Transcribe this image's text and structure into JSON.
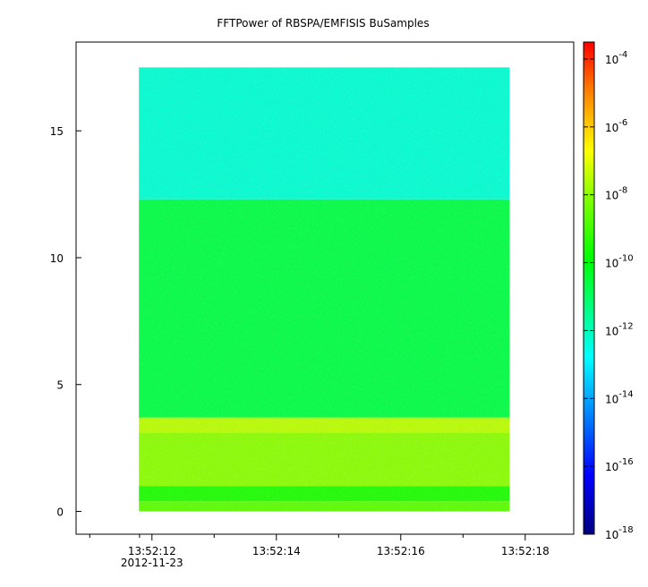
{
  "chart_data": {
    "type": "heatmap",
    "title": "FFTPower of RBSPA/EMFISIS  BuSamples",
    "xlabel": "",
    "ylabel": "",
    "x_ticks": [
      {
        "label": "13:52:12",
        "sub": "2012-11-23",
        "t": 12
      },
      {
        "label": "13:52:14",
        "sub": "",
        "t": 14
      },
      {
        "label": "13:52:16",
        "sub": "",
        "t": 16
      },
      {
        "label": "13:52:18",
        "sub": "",
        "t": 18
      }
    ],
    "x_minor_ticks": [
      11.8,
      11,
      13,
      15,
      17
    ],
    "xlim": [
      10.78,
      18.78
    ],
    "y_ticks": [
      0,
      5,
      10,
      15
    ],
    "ylim": [
      -0.9,
      18.5
    ],
    "x_extent": [
      11.79,
      17.75
    ],
    "y_extent": [
      0,
      17.5
    ],
    "bands": [
      {
        "y0": 0,
        "y1": 0.4,
        "log_power": -8.8,
        "note": "yellow-green"
      },
      {
        "y0": 0.4,
        "y1": 1.0,
        "log_power": -9.6,
        "note": "green"
      },
      {
        "y0": 1.0,
        "y1": 3.1,
        "log_power": -8.2,
        "note": "yellow"
      },
      {
        "y0": 3.1,
        "y1": 3.7,
        "log_power": -7.6,
        "note": "orange streaks"
      },
      {
        "y0": 3.7,
        "y1": 12.3,
        "log_power": -10.8,
        "note": "green"
      },
      {
        "y0": 12.3,
        "y1": 17.5,
        "log_power": -12.6,
        "note": "cyan-green"
      }
    ],
    "colorbar": {
      "scale": "log",
      "range_exp": [
        -18,
        -3.5
      ],
      "tick_base": "10",
      "tick_exponents": [
        "-4",
        "-6",
        "-8",
        "-10",
        "-12",
        "-14",
        "-16",
        "-18"
      ],
      "colormap": [
        "#00007f",
        "#0000ff",
        "#0080ff",
        "#00ffff",
        "#00ff80",
        "#00ff00",
        "#80ff00",
        "#ffff00",
        "#ff8000",
        "#ff0000"
      ]
    },
    "colors": {
      "frame": "#000000",
      "background": "#ffffff"
    }
  }
}
